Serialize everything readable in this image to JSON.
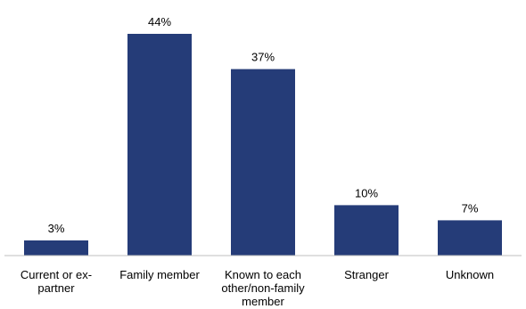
{
  "chart_data": {
    "type": "bar",
    "categories": [
      [
        "Current or ex-",
        "partner"
      ],
      [
        "Family member"
      ],
      [
        "Known to each",
        "other/non-family",
        "member"
      ],
      [
        "Stranger"
      ],
      [
        "Unknown"
      ]
    ],
    "values": [
      3,
      44,
      37,
      10,
      7
    ],
    "data_labels": [
      "3%",
      "44%",
      "37%",
      "10%",
      "7%"
    ],
    "unit": "%",
    "title": "",
    "xlabel": "",
    "ylabel": "",
    "ylim": [
      0,
      44
    ],
    "grid": false,
    "legend": "none",
    "bar_color": "#253C78",
    "axis_color": "#BFBFBF"
  }
}
